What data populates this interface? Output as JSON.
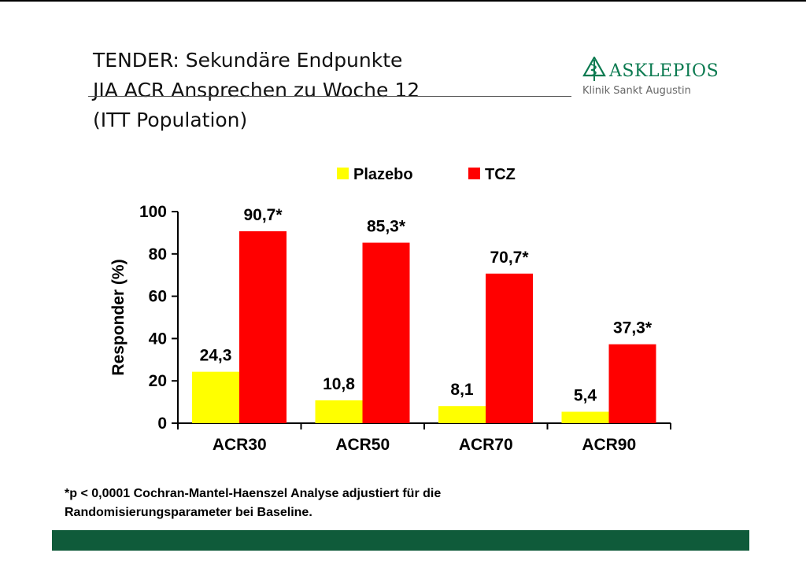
{
  "title": {
    "line1": "TENDER: Sekundäre Endpunkte",
    "line2": "JIA ACR Ansprechen zu Woche 12",
    "line3": "(ITT Population)"
  },
  "logo": {
    "name": "ASKLEPIOS",
    "subtitle": "Klinik Sankt Augustin",
    "icon": "asklepios-emblem-icon"
  },
  "colors": {
    "placebo": "#ffff00",
    "tcz": "#ff0000",
    "brand_green": "#0f5b3a"
  },
  "chart_data": {
    "type": "bar",
    "categories": [
      "ACR30",
      "ACR50",
      "ACR70",
      "ACR90"
    ],
    "series": [
      {
        "name": "Plazebo",
        "values": [
          24.3,
          10.8,
          8.1,
          5.4
        ],
        "labels": [
          "24,3",
          "10,8",
          "8,1",
          "5,4"
        ]
      },
      {
        "name": "TCZ",
        "values": [
          90.7,
          85.3,
          70.7,
          37.3
        ],
        "labels": [
          "90,7*",
          "85,3*",
          "70,7*",
          "37,3*"
        ]
      }
    ],
    "ylabel": "Responder (%)",
    "xlabel": "",
    "ylim": [
      0,
      100
    ],
    "yticks": [
      0,
      20,
      40,
      60,
      80,
      100
    ],
    "legend_position": "top",
    "grid": false
  },
  "footnote": {
    "line1": "*p < 0,0001 Cochran-Mantel-Haenszel Analyse adjustiert für die",
    "line2": "Randomisierungsparameter bei Baseline."
  }
}
